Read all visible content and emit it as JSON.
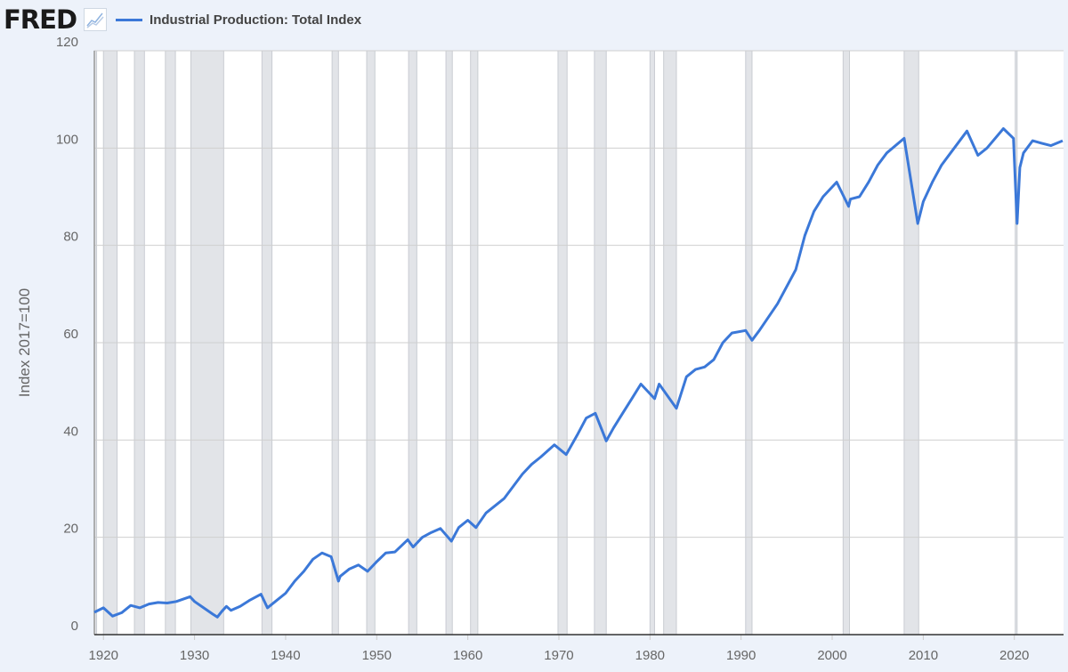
{
  "header": {
    "logo": "FRED",
    "legend_label": "Industrial Production: Total Index"
  },
  "chart_data": {
    "type": "line",
    "title": "",
    "ylabel": "Index 2017=100",
    "xlabel": "",
    "xlim": [
      1919.0,
      2025.4
    ],
    "ylim": [
      0,
      120
    ],
    "yticks": [
      0,
      20,
      40,
      60,
      80,
      100,
      120
    ],
    "xticks": [
      1920,
      1930,
      1940,
      1950,
      1960,
      1970,
      1980,
      1990,
      2000,
      2010,
      2020
    ],
    "grid": true,
    "legend": "top-left",
    "line_color": "#3b78d8",
    "recession_color": "#e2e4e8",
    "recessions": [
      [
        1918.7,
        1919.25
      ],
      [
        1920.0,
        1921.5
      ],
      [
        1923.4,
        1924.5
      ],
      [
        1926.8,
        1927.9
      ],
      [
        1929.6,
        1933.2
      ],
      [
        1937.4,
        1938.5
      ],
      [
        1945.1,
        1945.8
      ],
      [
        1948.9,
        1949.8
      ],
      [
        1953.5,
        1954.4
      ],
      [
        1957.6,
        1958.3
      ],
      [
        1960.3,
        1961.1
      ],
      [
        1969.9,
        1970.9
      ],
      [
        1973.9,
        1975.2
      ],
      [
        1980.0,
        1980.5
      ],
      [
        1981.5,
        1982.9
      ],
      [
        1990.5,
        1991.2
      ],
      [
        2001.2,
        2001.9
      ],
      [
        2007.9,
        2009.5
      ],
      [
        2020.1,
        2020.3
      ]
    ],
    "series": [
      {
        "name": "Industrial Production: Total Index",
        "x": [
          1919,
          1920,
          1921,
          1922,
          1923,
          1924,
          1925,
          1926,
          1927,
          1928,
          1929.5,
          1930,
          1931,
          1932,
          1932.5,
          1933,
          1933.5,
          1934,
          1935,
          1936,
          1937.3,
          1938,
          1939,
          1940,
          1941,
          1942,
          1943,
          1944,
          1945,
          1945.8,
          1946,
          1947,
          1948,
          1949,
          1950,
          1951,
          1952,
          1953.4,
          1954,
          1955,
          1956,
          1957,
          1958.2,
          1959,
          1960,
          1960.9,
          1962,
          1964,
          1966,
          1967,
          1968,
          1969.5,
          1970.8,
          1972,
          1973,
          1974,
          1975.2,
          1976,
          1977,
          1978,
          1979,
          1980.5,
          1981,
          1982.9,
          1984,
          1985,
          1986,
          1987,
          1988,
          1989,
          1990.5,
          1991.2,
          1992,
          1994,
          1996,
          1997,
          1998,
          1999,
          2000.5,
          2001.8,
          2002,
          2003,
          2004,
          2005,
          2006,
          2007.9,
          2009.4,
          2010,
          2011,
          2012,
          2013,
          2014.8,
          2016,
          2017,
          2018.8,
          2019.9,
          2020.3,
          2020.6,
          2021,
          2022,
          2023,
          2024,
          2025.3
        ],
        "y": [
          4.6,
          5.5,
          3.8,
          4.5,
          6,
          5.5,
          6.3,
          6.6,
          6.5,
          6.8,
          7.8,
          6.8,
          5.5,
          4.2,
          3.6,
          4.8,
          5.8,
          5,
          5.8,
          7,
          8.3,
          5.5,
          7,
          8.5,
          11,
          13,
          15.5,
          16.8,
          16,
          11,
          12,
          13.5,
          14.3,
          13,
          15,
          16.8,
          17,
          19.5,
          18,
          20,
          21,
          21.8,
          19.2,
          22,
          23.5,
          22,
          25,
          28,
          33,
          35,
          36.5,
          39,
          37,
          41,
          44.5,
          45.5,
          39.8,
          42.5,
          45.5,
          48.5,
          51.5,
          48.5,
          51.5,
          46.5,
          53,
          54.5,
          55,
          56.5,
          60,
          62,
          62.5,
          60.5,
          62.5,
          68,
          75,
          82,
          87,
          90,
          93,
          88,
          89.5,
          90,
          93,
          96.5,
          99,
          102,
          84.5,
          89,
          93,
          96.5,
          99,
          103.5,
          98.5,
          100,
          104,
          102,
          84.5,
          96,
          99,
          101.5,
          101,
          100.5,
          101.5
        ]
      }
    ]
  }
}
